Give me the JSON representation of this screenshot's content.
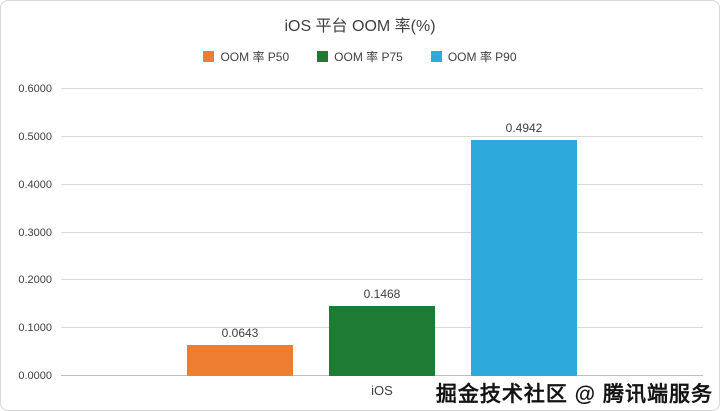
{
  "chart": {
    "title": "iOS 平台 OOM 率(%)",
    "xlabel": "iOS"
  },
  "watermark": "掘金技术社区 @ 腾讯端服务",
  "chart_data": {
    "type": "bar",
    "title": "iOS 平台 OOM 率(%)",
    "categories": [
      "iOS"
    ],
    "series": [
      {
        "name": "OOM 率 P50",
        "color": "#ED7D31",
        "values": [
          0.0643
        ]
      },
      {
        "name": "OOM 率 P75",
        "color": "#1E7B34",
        "values": [
          0.1468
        ]
      },
      {
        "name": "OOM 率 P90",
        "color": "#2EA9DC",
        "values": [
          0.4942
        ]
      }
    ],
    "xlabel": "",
    "ylabel": "",
    "ylim": [
      0,
      0.6
    ],
    "ytick_step": 0.1,
    "ytick_decimals": 4,
    "value_label_decimals": 4,
    "grid": true,
    "legend_position": "top"
  }
}
